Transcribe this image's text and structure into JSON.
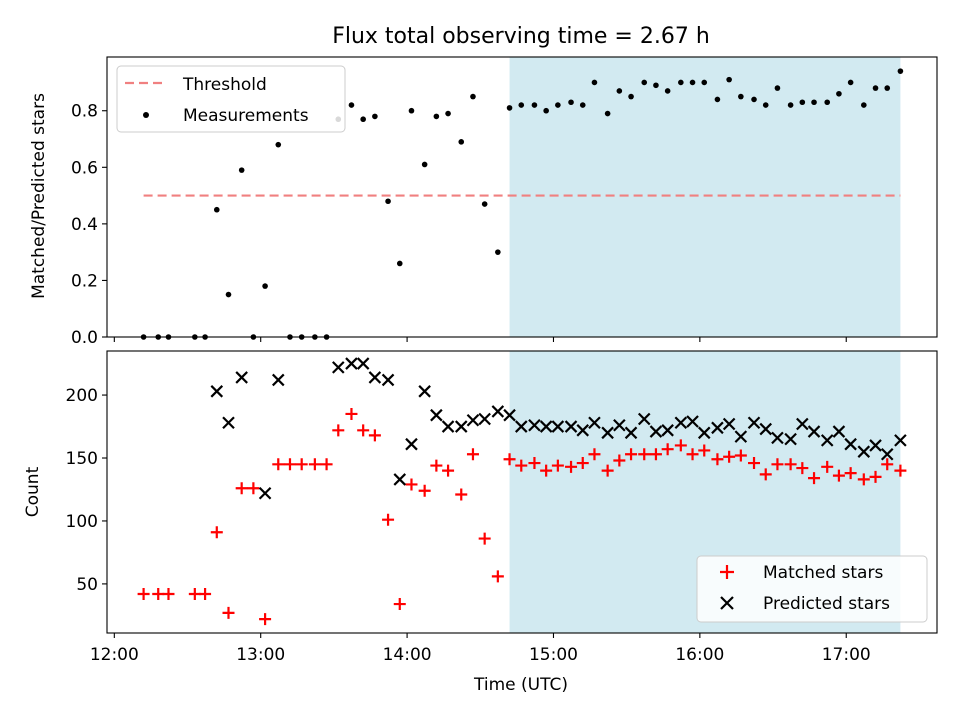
{
  "title": "Flux total observing time = 2.67 h",
  "xlabel": "Time (UTC)",
  "x_ticks": [
    "12:00",
    "13:00",
    "14:00",
    "15:00",
    "16:00",
    "17:00"
  ],
  "x_tick_hours": [
    12,
    13,
    14,
    15,
    16,
    17
  ],
  "colors": {
    "threshold": "#f08080",
    "shade": "#add8e6",
    "matched": "#ff0000",
    "predicted": "#000000",
    "measurement": "#000000"
  },
  "chart_data": [
    {
      "type": "scatter",
      "ylabel": "Matched/Predicted stars",
      "ylim": [
        0,
        0.99
      ],
      "y_ticks": [
        "0.0",
        "0.2",
        "0.4",
        "0.6",
        "0.8"
      ],
      "y_tick_values": [
        0,
        0.2,
        0.4,
        0.6,
        0.8
      ],
      "xlim_hours": [
        11.95,
        17.62
      ],
      "shaded_region_hours": [
        14.7,
        17.37
      ],
      "legend_position": "upper-left",
      "threshold": {
        "name": "Threshold",
        "value": 0.5,
        "x_range_hours": [
          12.2,
          17.37
        ]
      },
      "series": [
        {
          "name": "Measurements",
          "x_hours": [
            12.2,
            12.3,
            12.37,
            12.55,
            12.62,
            12.7,
            12.78,
            12.87,
            12.95,
            13.03,
            13.12,
            13.2,
            13.28,
            13.37,
            13.45,
            13.53,
            13.62,
            13.7,
            13.78,
            13.87,
            13.95,
            14.03,
            14.12,
            14.2,
            14.28,
            14.37,
            14.45,
            14.53,
            14.62,
            14.7,
            14.78,
            14.87,
            14.95,
            15.03,
            15.12,
            15.2,
            15.28,
            15.37,
            15.45,
            15.53,
            15.62,
            15.7,
            15.78,
            15.87,
            15.95,
            16.03,
            16.12,
            16.2,
            16.28,
            16.37,
            16.45,
            16.53,
            16.62,
            16.7,
            16.78,
            16.87,
            16.95,
            17.03,
            17.12,
            17.2,
            17.28,
            17.37
          ],
          "y": [
            0.0,
            0.0,
            0.0,
            0.0,
            0.0,
            0.45,
            0.15,
            0.59,
            0.0,
            0.18,
            0.68,
            0.0,
            0.0,
            0.0,
            0.0,
            0.77,
            0.82,
            0.77,
            0.78,
            0.48,
            0.26,
            0.8,
            0.61,
            0.78,
            0.79,
            0.69,
            0.85,
            0.47,
            0.3,
            0.81,
            0.82,
            0.82,
            0.8,
            0.82,
            0.83,
            0.82,
            0.9,
            0.79,
            0.87,
            0.85,
            0.9,
            0.89,
            0.87,
            0.9,
            0.9,
            0.9,
            0.84,
            0.91,
            0.85,
            0.84,
            0.82,
            0.88,
            0.82,
            0.83,
            0.83,
            0.83,
            0.86,
            0.9,
            0.82,
            0.88,
            0.88,
            0.94
          ]
        }
      ]
    },
    {
      "type": "scatter",
      "ylabel": "Count",
      "ylim": [
        11,
        235
      ],
      "y_ticks": [
        "50",
        "100",
        "150",
        "200"
      ],
      "y_tick_values": [
        50,
        100,
        150,
        200
      ],
      "xlim_hours": [
        11.95,
        17.62
      ],
      "shaded_region_hours": [
        14.7,
        17.37
      ],
      "legend_position": "lower-right",
      "series": [
        {
          "name": "Matched stars",
          "marker": "plus",
          "x_hours": [
            12.2,
            12.3,
            12.37,
            12.55,
            12.62,
            12.7,
            12.78,
            12.87,
            12.95,
            13.03,
            13.12,
            13.2,
            13.28,
            13.37,
            13.45,
            13.53,
            13.62,
            13.7,
            13.78,
            13.87,
            13.95,
            14.03,
            14.12,
            14.2,
            14.28,
            14.37,
            14.45,
            14.53,
            14.62,
            14.7,
            14.78,
            14.87,
            14.95,
            15.03,
            15.12,
            15.2,
            15.28,
            15.37,
            15.45,
            15.53,
            15.62,
            15.7,
            15.78,
            15.87,
            15.95,
            16.03,
            16.12,
            16.2,
            16.28,
            16.37,
            16.45,
            16.53,
            16.62,
            16.7,
            16.78,
            16.87,
            16.95,
            17.03,
            17.12,
            17.2,
            17.28,
            17.37
          ],
          "y": [
            42,
            42,
            42,
            42,
            42,
            91,
            27,
            126,
            126,
            22,
            145,
            145,
            145,
            145,
            145,
            172,
            185,
            172,
            168,
            101,
            34,
            129,
            124,
            144,
            140,
            121,
            153,
            86,
            56,
            149,
            144,
            146,
            140,
            144,
            143,
            146,
            153,
            140,
            148,
            153,
            153,
            153,
            157,
            160,
            153,
            156,
            149,
            151,
            152,
            146,
            137,
            145,
            145,
            142,
            134,
            143,
            136,
            138,
            133,
            135,
            145,
            140
          ]
        },
        {
          "name": "Predicted stars",
          "marker": "x",
          "x_hours": [
            12.7,
            12.78,
            12.87,
            13.03,
            13.12,
            13.53,
            13.62,
            13.7,
            13.78,
            13.87,
            13.95,
            14.03,
            14.12,
            14.2,
            14.28,
            14.37,
            14.45,
            14.53,
            14.62,
            14.7,
            14.78,
            14.87,
            14.95,
            15.03,
            15.12,
            15.2,
            15.28,
            15.37,
            15.45,
            15.53,
            15.62,
            15.7,
            15.78,
            15.87,
            15.95,
            16.03,
            16.12,
            16.2,
            16.28,
            16.37,
            16.45,
            16.53,
            16.62,
            16.7,
            16.78,
            16.87,
            16.95,
            17.03,
            17.12,
            17.2,
            17.28,
            17.37
          ],
          "y": [
            203,
            178,
            214,
            122,
            212,
            222,
            225,
            225,
            214,
            212,
            133,
            161,
            203,
            184,
            175,
            175,
            180,
            181,
            187,
            184,
            175,
            176,
            175,
            175,
            175,
            172,
            178,
            170,
            176,
            170,
            181,
            171,
            172,
            178,
            179,
            170,
            174,
            177,
            167,
            178,
            173,
            166,
            165,
            177,
            171,
            164,
            171,
            161,
            155,
            160,
            153,
            164
          ]
        }
      ]
    }
  ]
}
